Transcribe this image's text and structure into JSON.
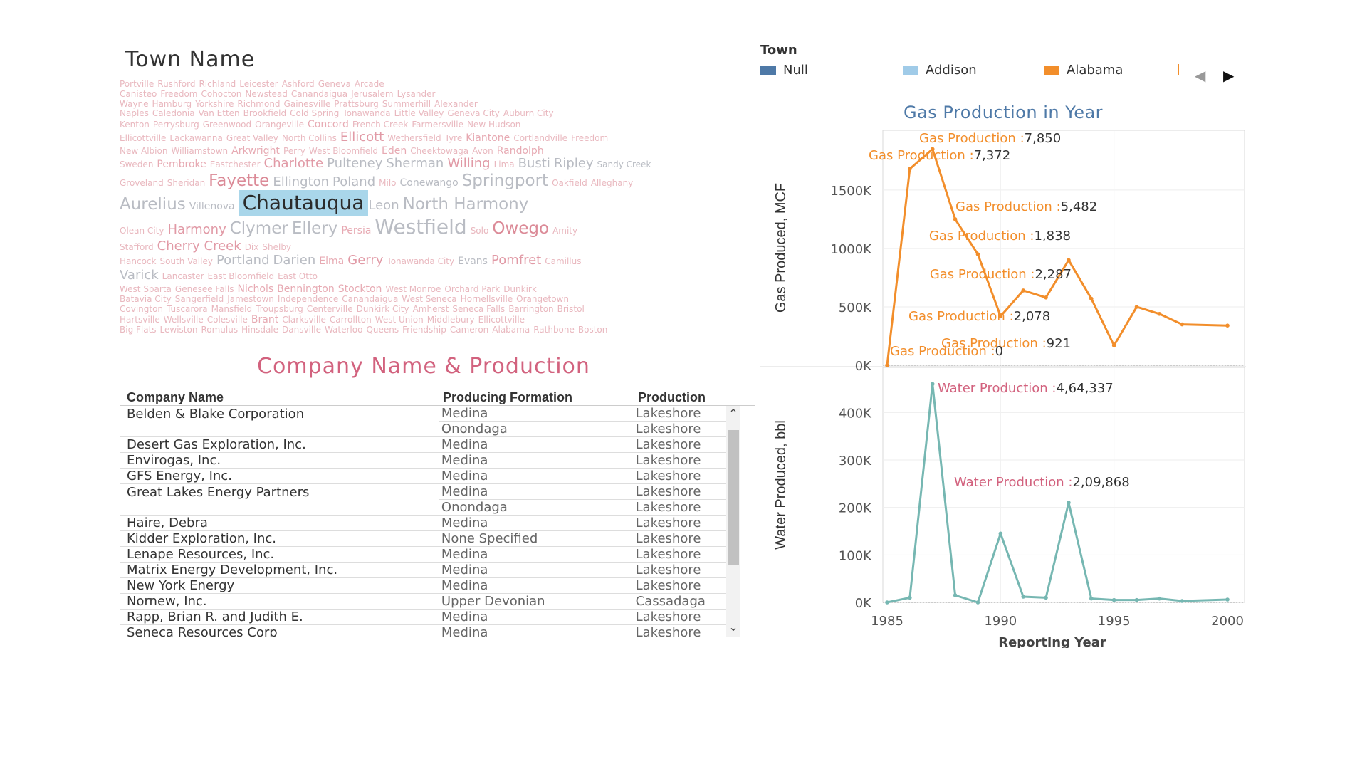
{
  "town_cloud": {
    "title": "Town Name",
    "selected": "Chautauqua",
    "rows": [
      [
        [
          "Portville",
          "xs"
        ],
        [
          "Rushford",
          "xs"
        ],
        [
          "Richland",
          "xs"
        ],
        [
          "Leicester",
          "xs"
        ],
        [
          "Ashford",
          "xs"
        ],
        [
          "Geneva",
          "xs"
        ],
        [
          "Arcade",
          "xs"
        ]
      ],
      [
        [
          "Canisteo",
          "xs"
        ],
        [
          "Freedom",
          "xs"
        ],
        [
          "Cohocton",
          "xs"
        ],
        [
          "Newstead",
          "xs"
        ],
        [
          "Canandaigua",
          "xs"
        ],
        [
          "Jerusalem",
          "xs"
        ],
        [
          "Lysander",
          "xs"
        ]
      ],
      [
        [
          "Wayne",
          "xs"
        ],
        [
          "Hamburg",
          "xs"
        ],
        [
          "Yorkshire",
          "xs"
        ],
        [
          "Richmond",
          "xs"
        ],
        [
          "Gainesville",
          "xs"
        ],
        [
          "Prattsburg",
          "xs"
        ],
        [
          "Summerhill",
          "xs"
        ],
        [
          "Alexander",
          "xs"
        ]
      ],
      [
        [
          "Naples",
          "xs"
        ],
        [
          "Caledonia",
          "xs"
        ],
        [
          "Van Etten",
          "xs"
        ],
        [
          "Brookfield",
          "xs"
        ],
        [
          "Cold Spring",
          "xs"
        ],
        [
          "Tonawanda",
          "xs"
        ],
        [
          "Little Valley",
          "xs"
        ],
        [
          "Geneva City",
          "xs"
        ],
        [
          "Auburn City",
          "xs"
        ]
      ],
      [
        [
          "Kenton",
          "xs"
        ],
        [
          "Perrysburg",
          "xs"
        ],
        [
          "Greenwood",
          "xs"
        ],
        [
          "Orangeville",
          "xs"
        ],
        [
          "Concord",
          "s"
        ],
        [
          "French Creek",
          "xs"
        ],
        [
          "Farmersville",
          "xs"
        ],
        [
          "New Hudson",
          "xs"
        ]
      ],
      [
        [
          "Ellicottville",
          "xs"
        ],
        [
          "Lackawanna",
          "xs"
        ],
        [
          "Great Valley",
          "xs"
        ],
        [
          "North Collins",
          "xs"
        ],
        [
          "Ellicott",
          "m"
        ],
        [
          "Wethersfield",
          "xs"
        ],
        [
          "Tyre",
          "xs"
        ],
        [
          "Kiantone",
          "s"
        ],
        [
          "Cortlandville",
          "xs"
        ],
        [
          "Freedom",
          "xs"
        ]
      ],
      [
        [
          "New Albion",
          "xs"
        ],
        [
          "Williamstown",
          "xs"
        ],
        [
          "Arkwright",
          "s"
        ],
        [
          "Perry",
          "xs"
        ],
        [
          "West Bloomfield",
          "xs"
        ],
        [
          "Eden",
          "s"
        ],
        [
          "Cheektowaga",
          "xs"
        ],
        [
          "Avon",
          "xs"
        ],
        [
          "Randolph",
          "s"
        ]
      ],
      [
        [
          "Sweden",
          "xs"
        ],
        [
          "Pembroke",
          "s"
        ],
        [
          "Eastchester",
          "xs"
        ],
        [
          "Charlotte",
          "m"
        ],
        [
          "Pulteney",
          "m"
        ],
        [
          "Sherman",
          "m"
        ],
        [
          "Willing",
          "m"
        ],
        [
          "Lima",
          "xs"
        ],
        [
          "Busti",
          "m"
        ],
        [
          "Ripley",
          "m"
        ],
        [
          "Sandy Creek",
          "xs"
        ]
      ],
      [
        [
          "Groveland",
          "xs"
        ],
        [
          "Sheridan",
          "xs"
        ],
        [
          "Fayette",
          "l"
        ],
        [
          "Ellington",
          "m"
        ],
        [
          "Poland",
          "m"
        ],
        [
          "Milo",
          "xs"
        ],
        [
          "Conewango",
          "s"
        ],
        [
          "Springport",
          "l"
        ],
        [
          "Oakfield",
          "xs"
        ],
        [
          "Alleghany",
          "xs"
        ]
      ],
      [
        [
          "Aurelius",
          "l"
        ],
        [
          "Villenova",
          "s"
        ],
        [
          "Chautauqua",
          "xl"
        ],
        [
          "Leon",
          "m"
        ],
        [
          "North Harmony",
          "l"
        ]
      ],
      [
        [
          "Olean City",
          "xs"
        ],
        [
          "Harmony",
          "m"
        ],
        [
          "Clymer",
          "l"
        ],
        [
          "Ellery",
          "l"
        ],
        [
          "Persia",
          "s"
        ],
        [
          "Westfield",
          "xl"
        ],
        [
          "Solo",
          "xs"
        ],
        [
          "Owego",
          "l"
        ],
        [
          "Amity",
          "xs"
        ]
      ],
      [
        [
          "Stafford",
          "xs"
        ],
        [
          "Cherry Creek",
          "m"
        ],
        [
          "Dix",
          "xs"
        ],
        [
          "Shelby",
          "xs"
        ]
      ],
      [
        [
          "Hancock",
          "xs"
        ],
        [
          "South Valley",
          "xs"
        ],
        [
          "Portland",
          "m"
        ],
        [
          "Darien",
          "m"
        ],
        [
          "Elma",
          "s"
        ],
        [
          "Gerry",
          "m"
        ],
        [
          "Tonawanda City",
          "xs"
        ],
        [
          "Evans",
          "s"
        ],
        [
          "Pomfret",
          "m"
        ],
        [
          "Camillus",
          "xs"
        ]
      ],
      [
        [
          "Varick",
          "m"
        ],
        [
          "Lancaster",
          "xs"
        ],
        [
          "East Bloomfield",
          "xs"
        ],
        [
          "East Otto",
          "xs"
        ]
      ],
      [
        [
          "West Sparta",
          "xs"
        ],
        [
          "Genesee Falls",
          "xs"
        ],
        [
          "Nichols",
          "s"
        ],
        [
          "Bennington",
          "s"
        ],
        [
          "Stockton",
          "s"
        ],
        [
          "West Monroe",
          "xs"
        ],
        [
          "Orchard Park",
          "xs"
        ],
        [
          "Dunkirk",
          "xs"
        ]
      ],
      [
        [
          "Batavia City",
          "xs"
        ],
        [
          "Sangerfield",
          "xs"
        ],
        [
          "Jamestown",
          "xs"
        ],
        [
          "Independence",
          "xs"
        ],
        [
          "Canandaigua",
          "xs"
        ],
        [
          "West Seneca",
          "xs"
        ],
        [
          "Hornellsville",
          "xs"
        ],
        [
          "Orangetown",
          "xs"
        ]
      ],
      [
        [
          "Covington",
          "xs"
        ],
        [
          "Tuscarora",
          "xs"
        ],
        [
          "Mansfield",
          "xs"
        ],
        [
          "Troupsburg",
          "xs"
        ],
        [
          "Centerville",
          "xs"
        ],
        [
          "Dunkirk City",
          "xs"
        ],
        [
          "Amherst",
          "xs"
        ],
        [
          "Seneca Falls",
          "xs"
        ],
        [
          "Barrington",
          "xs"
        ],
        [
          "Bristol",
          "xs"
        ]
      ],
      [
        [
          "Hartsville",
          "xs"
        ],
        [
          "Wellsville",
          "xs"
        ],
        [
          "Colesville",
          "xs"
        ],
        [
          "Brant",
          "s"
        ],
        [
          "Clarksville",
          "xs"
        ],
        [
          "Carrollton",
          "xs"
        ],
        [
          "West Union",
          "xs"
        ],
        [
          "Middlebury",
          "xs"
        ],
        [
          "Ellicottville",
          "xs"
        ]
      ],
      [
        [
          "Big Flats",
          "xs"
        ],
        [
          "Lewiston",
          "xs"
        ],
        [
          "Romulus",
          "xs"
        ],
        [
          "Hinsdale",
          "xs"
        ],
        [
          "Dansville",
          "xs"
        ],
        [
          "Waterloo",
          "xs"
        ],
        [
          "Queens",
          "xs"
        ],
        [
          "Friendship",
          "xs"
        ],
        [
          "Cameron",
          "xs"
        ],
        [
          "Alabama",
          "xs"
        ],
        [
          "Rathbone",
          "xs"
        ],
        [
          "Boston",
          "xs"
        ]
      ]
    ]
  },
  "company_table": {
    "title": "Company Name & Production",
    "columns": [
      "Company Name",
      "Producing Formation",
      "Production"
    ],
    "rows": [
      [
        "Belden & Blake Corporation",
        "Medina",
        "Lakeshore"
      ],
      [
        "",
        "Onondaga",
        "Lakeshore"
      ],
      [
        "Desert Gas Exploration, Inc.",
        "Medina",
        "Lakeshore"
      ],
      [
        "Envirogas, Inc.",
        "Medina",
        "Lakeshore"
      ],
      [
        "GFS Energy, Inc.",
        "Medina",
        "Lakeshore"
      ],
      [
        "Great Lakes Energy Partners",
        "Medina",
        "Lakeshore"
      ],
      [
        "",
        "Onondaga",
        "Lakeshore"
      ],
      [
        "Haire, Debra",
        "Medina",
        "Lakeshore"
      ],
      [
        "Kidder Exploration, Inc.",
        "None Specified",
        "Lakeshore"
      ],
      [
        "Lenape Resources, Inc.",
        "Medina",
        "Lakeshore"
      ],
      [
        "Matrix Energy Development, Inc.",
        "Medina",
        "Lakeshore"
      ],
      [
        "New York Energy",
        "Medina",
        "Lakeshore"
      ],
      [
        "Nornew, Inc.",
        "Upper Devonian",
        "Cassadaga"
      ],
      [
        "Rapp, Brian R. and Judith E.",
        "Medina",
        "Lakeshore"
      ],
      [
        "Seneca Resources Corp",
        "Medina",
        "Lakeshore"
      ]
    ]
  },
  "legend": {
    "title": "Town",
    "items": [
      {
        "label": "Null",
        "color": "#4e79a7"
      },
      {
        "label": "Addison",
        "color": "#a0cbe8"
      },
      {
        "label": "Alabama",
        "color": "#f28e2b"
      }
    ]
  },
  "chart_data": [
    {
      "type": "line",
      "title": "Gas Production in Year",
      "xlabel": "",
      "ylabel": "Gas Produced, MCF",
      "x": [
        1985,
        1986,
        1987,
        1988,
        1989,
        1990,
        1991,
        1992,
        1993,
        1994,
        1995,
        1996,
        1997,
        1998,
        2000
      ],
      "y": [
        0,
        1680,
        1850,
        1250,
        950,
        420,
        640,
        580,
        900,
        570,
        170,
        500,
        440,
        350,
        340
      ],
      "ylim": [
        0,
        1950
      ],
      "yticks": [
        "0K",
        "500K",
        "1000K",
        "1500K"
      ],
      "ytick_values": [
        0,
        500,
        1000,
        1500
      ],
      "color": "#f28e2b",
      "labels": [
        {
          "prefix": "Gas Production :",
          "value": "7,850"
        },
        {
          "prefix": "Gas Production :",
          "value": "7,372"
        },
        {
          "prefix": "Gas Production :",
          "value": "5,482"
        },
        {
          "prefix": "Gas Production :",
          "value": "1,838"
        },
        {
          "prefix": "Gas Production :",
          "value": "2,287"
        },
        {
          "prefix": "Gas Production :",
          "value": "2,078"
        },
        {
          "prefix": "Gas Production :",
          "value": "921"
        },
        {
          "prefix": "Gas Production :",
          "value": "0"
        }
      ],
      "grid": true
    },
    {
      "type": "line",
      "xlabel": "Reporting Year",
      "ylabel": "Water Produced, bbl",
      "x": [
        1985,
        1986,
        1987,
        1988,
        1989,
        1990,
        1991,
        1992,
        1993,
        1994,
        1995,
        1996,
        1997,
        1998,
        2000
      ],
      "y": [
        0,
        10,
        460,
        15,
        0,
        145,
        12,
        10,
        210,
        8,
        5,
        5,
        8,
        3,
        6
      ],
      "ylim": [
        0,
        480
      ],
      "yticks": [
        "0K",
        "100K",
        "200K",
        "300K",
        "400K"
      ],
      "ytick_values": [
        0,
        100,
        200,
        300,
        400
      ],
      "xticks": [
        "1985",
        "1990",
        "1995",
        "2000"
      ],
      "xtick_values": [
        1985,
        1990,
        1995,
        2000
      ],
      "color": "#76b7b2",
      "labels": [
        {
          "prefix": "Water Production :",
          "value": "4,64,337"
        },
        {
          "prefix": "Water Production :",
          "value": "2,09,868"
        }
      ],
      "grid": true
    }
  ]
}
